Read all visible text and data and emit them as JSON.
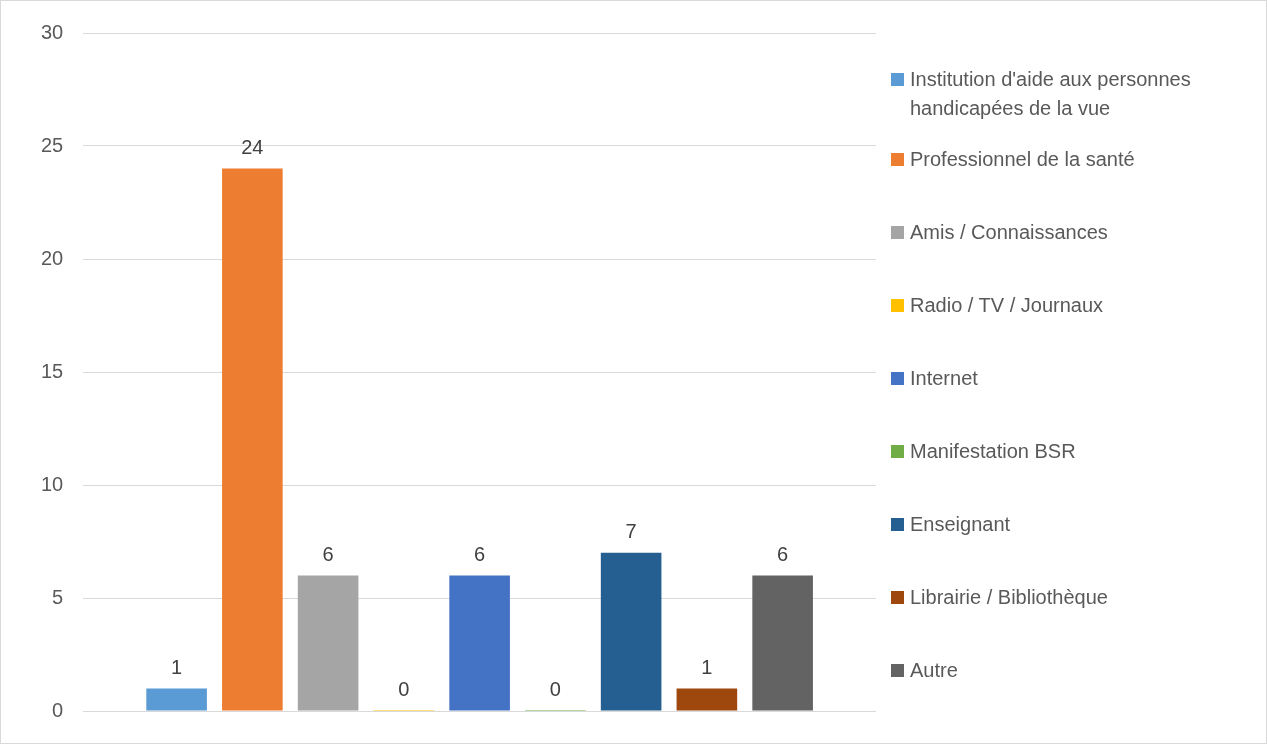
{
  "chart_data": {
    "type": "bar",
    "categories": [
      null
    ],
    "series": [
      {
        "name": "Institution d'aide aux personnes handicapées de la vue",
        "color": "#5b9bd5",
        "values": [
          1
        ]
      },
      {
        "name": "Professionnel de la santé",
        "color": "#ed7d31",
        "values": [
          24
        ]
      },
      {
        "name": "Amis / Connaissances",
        "color": "#a5a5a5",
        "values": [
          6
        ]
      },
      {
        "name": "Radio / TV / Journaux",
        "color": "#ffc000",
        "values": [
          0
        ]
      },
      {
        "name": "Internet",
        "color": "#4472c4",
        "values": [
          6
        ]
      },
      {
        "name": "Manifestation BSR",
        "color": "#70ad47",
        "values": [
          0
        ]
      },
      {
        "name": "Enseignant",
        "color": "#255e91",
        "values": [
          7
        ]
      },
      {
        "name": "Librairie / Bibliothèque",
        "color": "#9e480e",
        "values": [
          1
        ]
      },
      {
        "name": "Autre",
        "color": "#636363",
        "values": [
          6
        ]
      }
    ],
    "ylim": [
      0,
      30
    ],
    "yticks": [
      0,
      5,
      10,
      15,
      20,
      25,
      30
    ],
    "grid": "y",
    "legend": "right",
    "data_labels": true
  }
}
